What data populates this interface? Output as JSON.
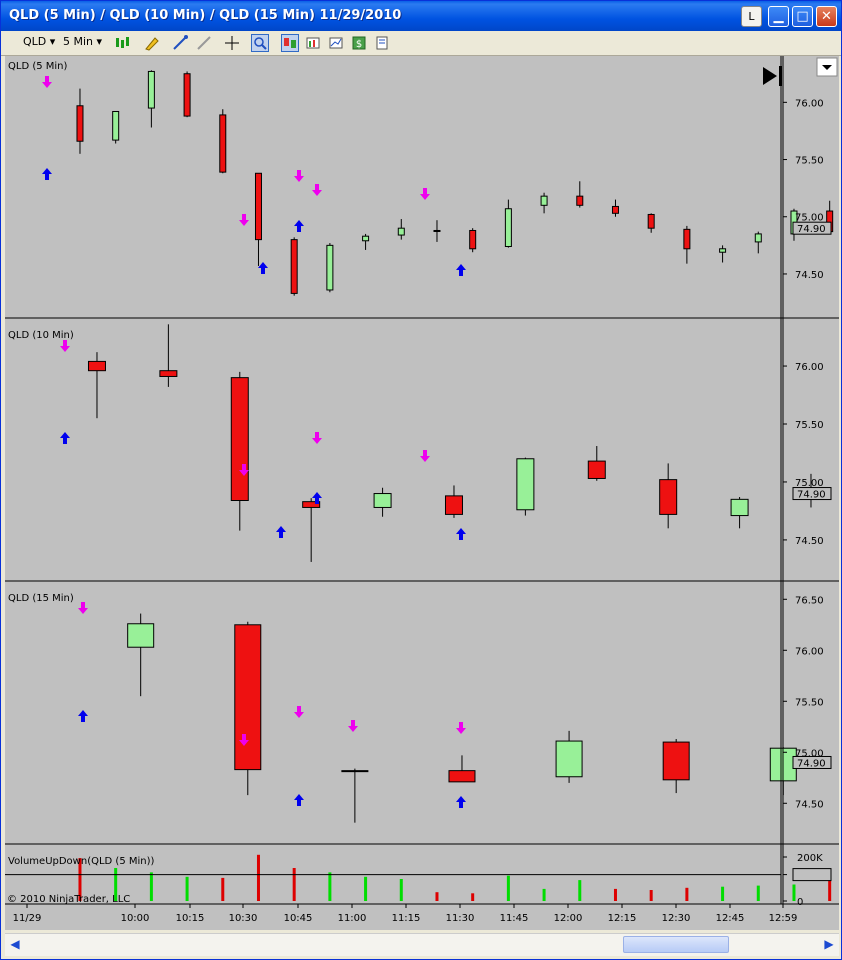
{
  "window": {
    "title": "QLD (5 Min) / QLD (10 Min) / QLD (15 Min)  11/29/2010",
    "buttons": {
      "layout": "L",
      "minimize": "▁",
      "maximize": "□",
      "close": "✕"
    }
  },
  "toolbar": {
    "instrument": "QLD",
    "interval": "5 Min"
  },
  "panels": [
    {
      "title": "QLD (5 Min)"
    },
    {
      "title": "QLD (10 Min)"
    },
    {
      "title": "QLD (15 Min)"
    },
    {
      "title": "VolumeUpDown(QLD (5 Min))"
    }
  ],
  "copyright": "© 2010 NinjaTrader, LLC",
  "colors": {
    "up": "#98f098",
    "down": "#ee1111",
    "bg": "#c0c0c0",
    "buy": "#0000ee",
    "sell": "#ee00ee",
    "vol_up": "#00dd00",
    "vol_down": "#dd0000"
  },
  "chart_data": [
    {
      "type": "candlestick",
      "title": "QLD (5 Min)",
      "x_labels": [
        "11/29",
        "10:00",
        "10:15",
        "10:30",
        "10:45",
        "11:00",
        "11:15",
        "11:30",
        "11:45",
        "12:00",
        "12:15",
        "12:30",
        "12:45",
        "12:59"
      ],
      "y_ticks": [
        "76.00",
        "75.50",
        "75.00",
        "74.50"
      ],
      "ylim": [
        74.15,
        76.37
      ],
      "last_price": "74.90",
      "candles": [
        {
          "t": "09:40",
          "o": 75.97,
          "h": 76.12,
          "l": 75.55,
          "c": 75.66
        },
        {
          "t": "09:45",
          "o": 75.67,
          "h": 75.92,
          "l": 75.64,
          "c": 75.92
        },
        {
          "t": "09:50",
          "o": 75.95,
          "h": 76.28,
          "l": 75.78,
          "c": 76.27
        },
        {
          "t": "09:55",
          "o": 76.25,
          "h": 76.27,
          "l": 75.87,
          "c": 75.88
        },
        {
          "t": "10:00",
          "o": 75.89,
          "h": 75.94,
          "l": 75.38,
          "c": 75.39
        },
        {
          "t": "10:05",
          "o": 75.38,
          "h": 75.38,
          "l": 74.57,
          "c": 74.8
        },
        {
          "t": "10:10",
          "o": 74.8,
          "h": 74.82,
          "l": 74.31,
          "c": 74.33
        },
        {
          "t": "10:15",
          "o": 74.36,
          "h": 74.77,
          "l": 74.34,
          "c": 74.75
        },
        {
          "t": "10:20",
          "o": 74.79,
          "h": 74.85,
          "l": 74.71,
          "c": 74.83
        },
        {
          "t": "10:25",
          "o": 74.84,
          "h": 74.98,
          "l": 74.8,
          "c": 74.9
        },
        {
          "t": "10:30",
          "o": 74.88,
          "h": 74.97,
          "l": 74.78,
          "c": 74.88
        },
        {
          "t": "10:35",
          "o": 74.88,
          "h": 74.9,
          "l": 74.69,
          "c": 74.72
        },
        {
          "t": "10:40",
          "o": 74.74,
          "h": 75.15,
          "l": 74.73,
          "c": 75.07
        },
        {
          "t": "10:45",
          "o": 75.1,
          "h": 75.21,
          "l": 75.03,
          "c": 75.18
        },
        {
          "t": "10:50",
          "o": 75.18,
          "h": 75.31,
          "l": 75.08,
          "c": 75.1
        },
        {
          "t": "10:55",
          "o": 75.09,
          "h": 75.15,
          "l": 75.0,
          "c": 75.03
        },
        {
          "t": "11:00",
          "o": 75.02,
          "h": 75.03,
          "l": 74.86,
          "c": 74.9
        },
        {
          "t": "11:05",
          "o": 74.89,
          "h": 74.92,
          "l": 74.59,
          "c": 74.72
        },
        {
          "t": "11:10",
          "o": 74.69,
          "h": 74.75,
          "l": 74.6,
          "c": 74.72
        },
        {
          "t": "11:15",
          "o": 74.78,
          "h": 74.87,
          "l": 74.68,
          "c": 74.85
        },
        {
          "t": "11:20",
          "o": 74.85,
          "h": 75.07,
          "l": 74.79,
          "c": 75.05
        },
        {
          "t": "11:25",
          "o": 75.05,
          "h": 75.14,
          "l": 74.85,
          "c": 74.87
        },
        {
          "t": "11:30",
          "o": 74.88,
          "h": 74.98,
          "l": 74.78,
          "c": 74.81
        },
        {
          "t": "11:35",
          "o": 74.78,
          "h": 74.94,
          "l": 74.7,
          "c": 74.88
        },
        {
          "t": "11:40",
          "o": 74.87,
          "h": 74.92,
          "l": 74.68,
          "c": 74.71
        },
        {
          "t": "11:45",
          "o": 74.7,
          "h": 74.83,
          "l": 74.64,
          "c": 74.68
        },
        {
          "t": "11:50",
          "o": 74.66,
          "h": 74.72,
          "l": 74.4,
          "c": 74.51
        },
        {
          "t": "11:55",
          "o": 74.5,
          "h": 74.55,
          "l": 74.45,
          "c": 74.5
        },
        {
          "t": "12:00",
          "o": 74.5,
          "h": 74.56,
          "l": 74.42,
          "c": 74.53
        },
        {
          "t": "12:05",
          "o": 74.5,
          "h": 74.57,
          "l": 74.48,
          "c": 74.54
        },
        {
          "t": "12:10",
          "o": 74.53,
          "h": 74.6,
          "l": 74.49,
          "c": 74.55
        },
        {
          "t": "12:15",
          "o": 74.5,
          "h": 74.79,
          "l": 74.48,
          "c": 74.76
        },
        {
          "t": "12:20",
          "o": 74.74,
          "h": 74.89,
          "l": 74.72,
          "c": 74.87
        },
        {
          "t": "12:25",
          "o": 74.85,
          "h": 74.9,
          "l": 74.81,
          "c": 74.89
        },
        {
          "t": "12:30",
          "o": 74.89,
          "h": 75.08,
          "l": 74.87,
          "c": 75.02
        },
        {
          "t": "12:35",
          "o": 75.01,
          "h": 75.02,
          "l": 74.92,
          "c": 74.95
        },
        {
          "t": "12:40",
          "o": 74.91,
          "h": 74.96,
          "l": 74.84,
          "c": 74.88
        },
        {
          "t": "12:45",
          "o": 74.89,
          "h": 74.92,
          "l": 74.84,
          "c": 74.87
        },
        {
          "t": "12:50",
          "o": 74.87,
          "h": 75.1,
          "l": 74.85,
          "c": 75.04
        },
        {
          "t": "12:55",
          "o": 75.08,
          "h": 75.11,
          "l": 74.95,
          "c": 74.97
        },
        {
          "t": "12:59",
          "o": 74.96,
          "h": 74.99,
          "l": 74.86,
          "c": 74.89
        }
      ]
    },
    {
      "type": "candlestick",
      "title": "QLD (10 Min)",
      "y_ticks": [
        "76.00",
        "75.50",
        "75.00",
        "74.50"
      ],
      "ylim": [
        74.18,
        76.38
      ],
      "last_price": "74.90",
      "candles": [
        {
          "t": "09:40",
          "o": 76.04,
          "h": 76.12,
          "l": 75.55,
          "c": 75.96
        },
        {
          "t": "09:50",
          "o": 75.96,
          "h": 76.36,
          "l": 75.82,
          "c": 75.91
        },
        {
          "t": "10:00",
          "o": 75.9,
          "h": 75.95,
          "l": 74.58,
          "c": 74.84
        },
        {
          "t": "10:10",
          "o": 74.83,
          "h": 74.86,
          "l": 74.31,
          "c": 74.78
        },
        {
          "t": "10:20",
          "o": 74.78,
          "h": 74.95,
          "l": 74.7,
          "c": 74.9
        },
        {
          "t": "10:30",
          "o": 74.88,
          "h": 74.97,
          "l": 74.69,
          "c": 74.72
        },
        {
          "t": "10:40",
          "o": 74.76,
          "h": 75.21,
          "l": 74.71,
          "c": 75.2
        },
        {
          "t": "10:50",
          "o": 75.18,
          "h": 75.31,
          "l": 75.01,
          "c": 75.03
        },
        {
          "t": "11:00",
          "o": 75.02,
          "h": 75.16,
          "l": 74.6,
          "c": 74.72
        },
        {
          "t": "11:10",
          "o": 74.71,
          "h": 74.87,
          "l": 74.6,
          "c": 74.85
        },
        {
          "t": "11:20",
          "o": 74.86,
          "h": 75.07,
          "l": 74.78,
          "c": 74.88
        },
        {
          "t": "11:30",
          "o": 74.89,
          "h": 75.05,
          "l": 74.7,
          "c": 74.88
        },
        {
          "t": "11:40",
          "o": 74.91,
          "h": 74.99,
          "l": 74.68,
          "c": 74.7
        },
        {
          "t": "11:50",
          "o": 74.69,
          "h": 74.76,
          "l": 74.4,
          "c": 74.52
        },
        {
          "t": "12:00",
          "o": 74.51,
          "h": 74.57,
          "l": 74.44,
          "c": 74.54
        },
        {
          "t": "12:10",
          "o": 74.5,
          "h": 74.79,
          "l": 74.48,
          "c": 74.76
        },
        {
          "t": "12:20",
          "o": 74.74,
          "h": 74.91,
          "l": 74.72,
          "c": 74.89
        },
        {
          "t": "12:30",
          "o": 74.89,
          "h": 75.08,
          "l": 74.87,
          "c": 74.95
        },
        {
          "t": "12:40",
          "o": 74.9,
          "h": 74.95,
          "l": 74.84,
          "c": 74.86
        },
        {
          "t": "12:50",
          "o": 74.87,
          "h": 75.1,
          "l": 74.85,
          "c": 74.98
        }
      ]
    },
    {
      "type": "candlestick",
      "title": "QLD (15 Min)",
      "y_ticks": [
        "76.50",
        "76.00",
        "75.50",
        "75.00",
        "74.50"
      ],
      "ylim": [
        74.14,
        76.64
      ],
      "last_price": "74.90",
      "candles": [
        {
          "t": "09:45",
          "o": 76.03,
          "h": 76.36,
          "l": 75.55,
          "c": 76.26
        },
        {
          "t": "10:00",
          "o": 76.25,
          "h": 76.28,
          "l": 74.58,
          "c": 74.83
        },
        {
          "t": "10:15",
          "o": 74.82,
          "h": 74.84,
          "l": 74.31,
          "c": 74.82
        },
        {
          "t": "10:30",
          "o": 74.82,
          "h": 74.97,
          "l": 74.72,
          "c": 74.71
        },
        {
          "t": "10:45",
          "o": 74.76,
          "h": 75.21,
          "l": 74.7,
          "c": 75.11
        },
        {
          "t": "11:00",
          "o": 75.1,
          "h": 75.13,
          "l": 74.6,
          "c": 74.73
        },
        {
          "t": "11:15",
          "o": 74.72,
          "h": 75.05,
          "l": 74.58,
          "c": 75.04
        },
        {
          "t": "11:30",
          "o": 75.05,
          "h": 75.13,
          "l": 74.83,
          "c": 74.85
        },
        {
          "t": "11:45",
          "o": 74.88,
          "h": 74.96,
          "l": 74.38,
          "c": 74.52
        },
        {
          "t": "12:00",
          "o": 74.52,
          "h": 74.57,
          "l": 74.4,
          "c": 74.53
        },
        {
          "t": "12:15",
          "o": 74.5,
          "h": 74.88,
          "l": 74.48,
          "c": 74.87
        },
        {
          "t": "12:30",
          "o": 74.83,
          "h": 75.06,
          "l": 74.82,
          "c": 74.94
        },
        {
          "t": "12:45",
          "o": 74.91,
          "h": 75.09,
          "l": 74.84,
          "c": 75.02
        }
      ]
    },
    {
      "type": "bar",
      "title": "VolumeUpDown(QLD (5 Min))",
      "y_ticks": [
        "200K",
        "120K",
        "0"
      ],
      "ylim": [
        0,
        250
      ],
      "unit": "K",
      "values": [
        {
          "v": 195,
          "up": false
        },
        {
          "v": 150,
          "up": true
        },
        {
          "v": 130,
          "up": true
        },
        {
          "v": 110,
          "up": true
        },
        {
          "v": 105,
          "up": false
        },
        {
          "v": 210,
          "up": false
        },
        {
          "v": 150,
          "up": false
        },
        {
          "v": 130,
          "up": true
        },
        {
          "v": 110,
          "up": true
        },
        {
          "v": 100,
          "up": true
        },
        {
          "v": 40,
          "up": false
        },
        {
          "v": 35,
          "up": false
        },
        {
          "v": 115,
          "up": true
        },
        {
          "v": 55,
          "up": true
        },
        {
          "v": 95,
          "up": true
        },
        {
          "v": 55,
          "up": false
        },
        {
          "v": 50,
          "up": false
        },
        {
          "v": 60,
          "up": false
        },
        {
          "v": 65,
          "up": true
        },
        {
          "v": 70,
          "up": true
        },
        {
          "v": 75,
          "up": true
        },
        {
          "v": 140,
          "up": false
        },
        {
          "v": 90,
          "up": true
        },
        {
          "v": 100,
          "up": true
        },
        {
          "v": 55,
          "up": false
        },
        {
          "v": 50,
          "up": false
        },
        {
          "v": 135,
          "up": false
        },
        {
          "v": 40,
          "up": true
        },
        {
          "v": 35,
          "up": false
        },
        {
          "v": 35,
          "up": true
        },
        {
          "v": 40,
          "up": true
        },
        {
          "v": 45,
          "up": true
        },
        {
          "v": 35,
          "up": true
        },
        {
          "v": 30,
          "up": true
        },
        {
          "v": 45,
          "up": true
        },
        {
          "v": 30,
          "up": false
        },
        {
          "v": 25,
          "up": false
        },
        {
          "v": 30,
          "up": false
        },
        {
          "v": 35,
          "up": true
        },
        {
          "v": 40,
          "up": false
        },
        {
          "v": 20,
          "up": false
        }
      ]
    }
  ]
}
